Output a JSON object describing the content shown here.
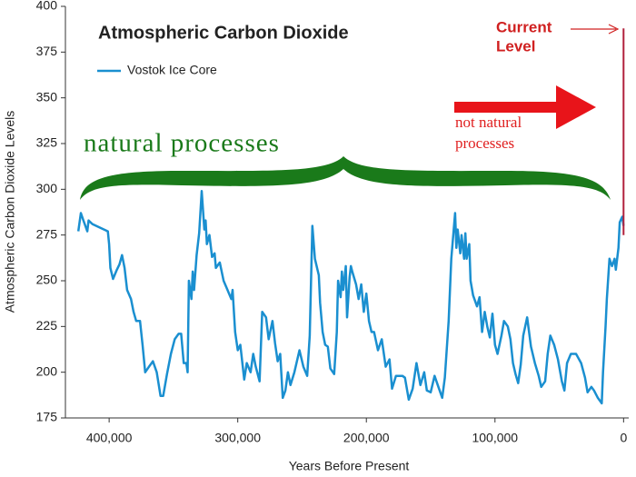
{
  "chart_data": {
    "type": "line",
    "title": "Atmospheric Carbon Dioxide",
    "xlabel": "Years Before Present",
    "ylabel": "Atmospheric Carbon Dioxide Levels",
    "xlim": [
      434000,
      -4000
    ],
    "ylim": [
      175,
      400
    ],
    "xticks": [
      {
        "value": 400000,
        "label": "400,000"
      },
      {
        "value": 300000,
        "label": "300,000"
      },
      {
        "value": 200000,
        "label": "200,000"
      },
      {
        "value": 100000,
        "label": "100,000"
      },
      0
    ],
    "yticks": [
      175,
      200,
      225,
      250,
      275,
      300,
      325,
      350,
      375,
      400
    ],
    "series": [
      {
        "name": "Vostok Ice Core",
        "color": "#1a8fd0",
        "x": [
          424000,
          422000,
          420000,
          417000,
          416000,
          413000,
          407000,
          401000,
          400000,
          399000,
          397000,
          394000,
          392000,
          390000,
          388000,
          386000,
          383000,
          381000,
          379000,
          376000,
          374000,
          372000,
          369000,
          366000,
          363000,
          360000,
          358000,
          355000,
          352000,
          349000,
          346000,
          344000,
          342000,
          340000,
          339000,
          338000,
          336000,
          335000,
          334000,
          332000,
          330000,
          328000,
          326000,
          325000,
          324000,
          322000,
          320000,
          318000,
          317000,
          314000,
          311000,
          308000,
          305000,
          304000,
          302000,
          300000,
          298000,
          295000,
          293000,
          290000,
          288000,
          286000,
          283000,
          281000,
          278000,
          276000,
          273000,
          271000,
          269000,
          267000,
          265000,
          263000,
          261000,
          259000,
          256000,
          252000,
          249000,
          246000,
          244000,
          242000,
          240000,
          237000,
          236000,
          234000,
          232000,
          230000,
          228000,
          225000,
          223000,
          222000,
          220000,
          219000,
          218000,
          216000,
          215000,
          213000,
          212000,
          211000,
          208000,
          206000,
          204000,
          202000,
          200000,
          198000,
          196000,
          194000,
          191000,
          188000,
          185000,
          182000,
          180000,
          177000,
          172000,
          170000,
          167000,
          164000,
          161000,
          158000,
          155000,
          153000,
          150000,
          147000,
          144000,
          141000,
          139000,
          136000,
          134000,
          131000,
          130000,
          129000,
          127000,
          126000,
          124000,
          123000,
          122000,
          120000,
          119000,
          117000,
          114000,
          112000,
          110000,
          108000,
          106000,
          104000,
          102000,
          100000,
          98000,
          95000,
          93000,
          90000,
          88000,
          86000,
          84000,
          82000,
          80000,
          78000,
          75000,
          72000,
          69000,
          66000,
          64000,
          61000,
          59000,
          57000,
          54000,
          51000,
          48000,
          46000,
          44000,
          41000,
          37000,
          33000,
          30000,
          28000,
          25000,
          23000,
          20000,
          17000,
          16000,
          14000,
          13000,
          11000,
          9000,
          7000,
          6000,
          4000,
          3000,
          1000,
          0
        ],
        "values": [
          277,
          287,
          283,
          277,
          283,
          281,
          279,
          277,
          270,
          257,
          251,
          256,
          259,
          264,
          257,
          245,
          240,
          233,
          228,
          228,
          215,
          200,
          203,
          206,
          200,
          187,
          187,
          199,
          210,
          218,
          221,
          221,
          205,
          205,
          200,
          250,
          240,
          255,
          245,
          264,
          276,
          299,
          278,
          283,
          270,
          275,
          263,
          265,
          257,
          260,
          250,
          245,
          240,
          245,
          222,
          212,
          215,
          196,
          205,
          200,
          210,
          203,
          195,
          233,
          230,
          218,
          228,
          216,
          206,
          210,
          186,
          190,
          200,
          193,
          200,
          212,
          203,
          198,
          220,
          280,
          262,
          253,
          238,
          222,
          215,
          214,
          202,
          199,
          222,
          250,
          241,
          255,
          245,
          258,
          230,
          252,
          258,
          255,
          248,
          240,
          248,
          233,
          243,
          228,
          222,
          222,
          212,
          218,
          203,
          207,
          191,
          198,
          198,
          197,
          185,
          191,
          205,
          193,
          200,
          190,
          189,
          198,
          192,
          186,
          197,
          228,
          262,
          287,
          268,
          278,
          265,
          275,
          262,
          276,
          262,
          270,
          250,
          242,
          236,
          241,
          222,
          233,
          225,
          219,
          232,
          215,
          210,
          220,
          228,
          225,
          218,
          205,
          199,
          194,
          204,
          220,
          230,
          214,
          205,
          198,
          192,
          195,
          210,
          220,
          215,
          207,
          195,
          190,
          205,
          210,
          210,
          205,
          197,
          189,
          192,
          190,
          186,
          183,
          200,
          225,
          240,
          262,
          258,
          262,
          256,
          268,
          282,
          285,
          280
        ]
      }
    ],
    "current_level": {
      "label": [
        "Current",
        "Level"
      ],
      "color": "#b0203c",
      "x": [
        0,
        0
      ],
      "values": [
        275,
        388
      ]
    },
    "annotations": {
      "natural": "natural processes",
      "not_natural": [
        "not natural",
        "processes"
      ]
    },
    "legend": "upper left"
  }
}
